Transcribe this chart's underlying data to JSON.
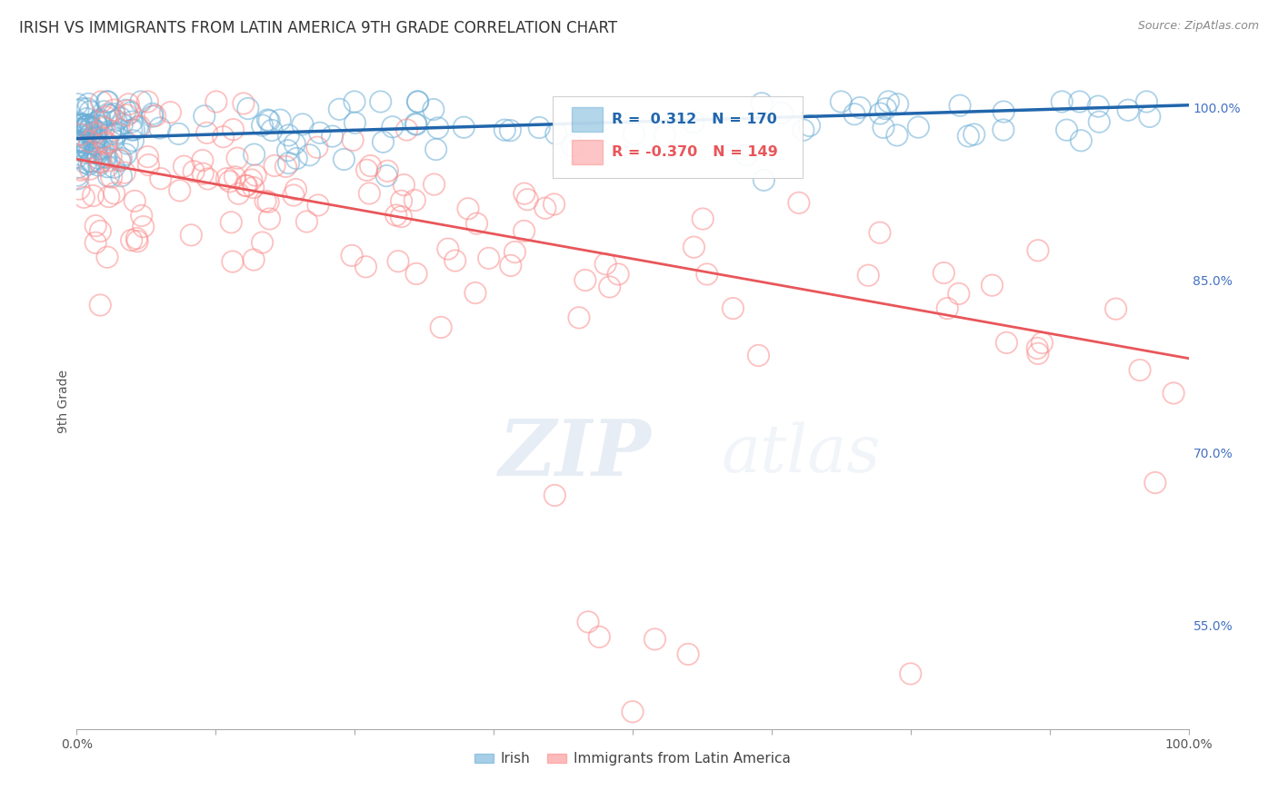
{
  "title": "IRISH VS IMMIGRANTS FROM LATIN AMERICA 9TH GRADE CORRELATION CHART",
  "source_text": "Source: ZipAtlas.com",
  "ylabel": "9th Grade",
  "legend_irish": "Irish",
  "legend_latin": "Immigrants from Latin America",
  "r_irish": 0.312,
  "n_irish": 170,
  "r_latin": -0.37,
  "n_latin": 149,
  "irish_color": "#6baed6",
  "latin_color": "#fc8d8d",
  "irish_trend_color": "#2166ac",
  "latin_trend_color": "#e8565a",
  "watermark_zip": "ZIP",
  "watermark_atlas": "atlas",
  "right_yticks": [
    55.0,
    70.0,
    85.0,
    100.0
  ],
  "xlim": [
    0.0,
    1.0
  ],
  "ylim": [
    0.46,
    1.03
  ],
  "background_color": "#ffffff",
  "grid_color": "#cccccc",
  "title_fontsize": 12,
  "marker_size": 9,
  "marker_alpha": 0.55,
  "marker_lw": 1.3,
  "irish_trend_start_y": 0.973,
  "irish_trend_end_y": 1.002,
  "latin_trend_start_y": 0.955,
  "latin_trend_end_y": 0.782
}
